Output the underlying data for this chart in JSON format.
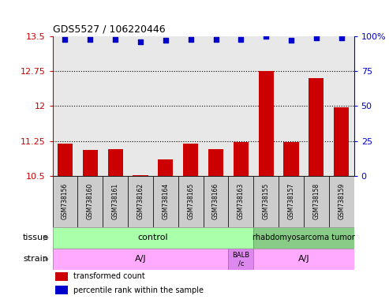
{
  "title": "GDS5527 / 106220446",
  "samples": [
    "GSM738156",
    "GSM738160",
    "GSM738161",
    "GSM738162",
    "GSM738164",
    "GSM738165",
    "GSM738166",
    "GSM738163",
    "GSM738155",
    "GSM738157",
    "GSM738158",
    "GSM738159"
  ],
  "bar_values": [
    11.2,
    11.05,
    11.07,
    10.52,
    10.85,
    11.2,
    11.07,
    11.23,
    12.75,
    11.22,
    12.6,
    11.98
  ],
  "dot_values": [
    98,
    98,
    98,
    96,
    97,
    98,
    98,
    98,
    100,
    97,
    99,
    99
  ],
  "bar_color": "#cc0000",
  "dot_color": "#0000cc",
  "ylim_left": [
    10.5,
    13.5
  ],
  "ylim_right": [
    0,
    100
  ],
  "yticks_left": [
    10.5,
    11.25,
    12.0,
    12.75,
    13.5
  ],
  "yticks_right": [
    0,
    25,
    50,
    75,
    100
  ],
  "ytick_labels_left": [
    "10.5",
    "11.25",
    "12",
    "12.75",
    "13.5"
  ],
  "ytick_labels_right": [
    "0",
    "25",
    "50",
    "75",
    "100%"
  ],
  "grid_lines": [
    11.25,
    12.0,
    12.75
  ],
  "bar_color_dark": "#aa0000",
  "dot_color_dark": "#0000aa",
  "axis_color_left": "#cc0000",
  "axis_color_right": "#0000cc",
  "plot_bg_color": "#e8e8e8",
  "sample_box_color": "#cccccc",
  "tissue_control_color": "#aaffaa",
  "tissue_tumor_color": "#88cc88",
  "strain_aj_color": "#ffaaff",
  "strain_balb_color": "#dd88ee",
  "tissue_row_label": "tissue",
  "strain_row_label": "strain",
  "tissue_control_text": "control",
  "tissue_tumor_text": "rhabdomyosarcoma tumor",
  "strain_aj_text": "A/J",
  "strain_balb_text": "BALB\n/c",
  "legend_red_label": "transformed count",
  "legend_blue_label": "percentile rank within the sample",
  "n_control": 8,
  "n_balb": 1,
  "n_tumor": 4,
  "arrow_color": "#888888"
}
